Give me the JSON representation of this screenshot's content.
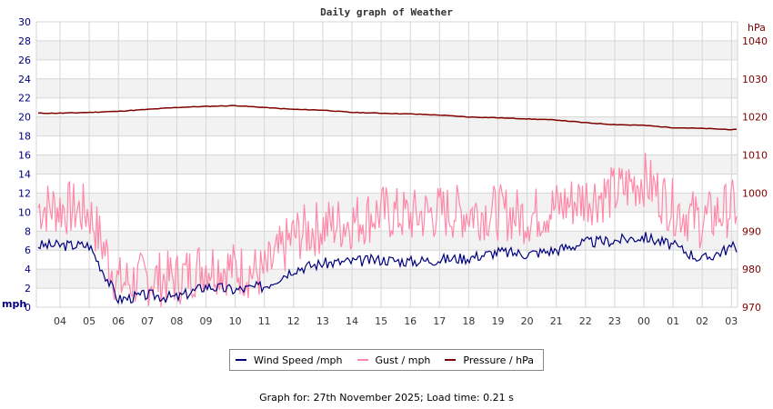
{
  "chart_data": {
    "type": "line",
    "title": "Daily graph of Weather",
    "xlabel": "",
    "ylabel": "mph",
    "ylabel_right": "hPa",
    "ylim": [
      0,
      30
    ],
    "ylim_right": [
      970,
      1040
    ],
    "grid": true,
    "legend_position": "bottom",
    "yticks_left": [
      "0",
      "2",
      "4",
      "6",
      "8",
      "10",
      "12",
      "14",
      "16",
      "18",
      "20",
      "22",
      "24",
      "26",
      "28",
      "30"
    ],
    "yticks_right": [
      "970",
      "980",
      "990",
      "1000",
      "1010",
      "1020",
      "1030",
      "1040"
    ],
    "x": [
      "04",
      "05",
      "06",
      "07",
      "08",
      "09",
      "10",
      "11",
      "12",
      "13",
      "14",
      "15",
      "16",
      "17",
      "18",
      "19",
      "20",
      "21",
      "22",
      "23",
      "00",
      "01",
      "02",
      "03"
    ],
    "series": [
      {
        "name": "Wind Speed /mph",
        "color": "#000080",
        "axis": "left",
        "values": [
          6.5,
          6.5,
          0.8,
          1.3,
          1.0,
          2.2,
          1.8,
          2.2,
          4.0,
          4.6,
          4.8,
          5.0,
          4.8,
          5.0,
          5.2,
          5.8,
          5.6,
          6.0,
          6.8,
          7.0,
          7.4,
          6.5,
          5.0,
          6.3
        ]
      },
      {
        "name": "Gust / mph",
        "color": "#ff88aa",
        "axis": "left",
        "values": [
          10.5,
          10.0,
          2.5,
          3.0,
          3.0,
          4.5,
          4.0,
          3.5,
          7.5,
          8.5,
          9.0,
          10.0,
          9.5,
          10.0,
          10.0,
          10.0,
          9.5,
          10.5,
          11.5,
          12.0,
          13.5,
          10.5,
          9.0,
          10.5
        ]
      },
      {
        "name": "Pressure / hPa",
        "color": "#800000",
        "axis": "right",
        "values": [
          1021,
          1021.2,
          1021.5,
          1022,
          1022.5,
          1022.8,
          1023,
          1022.5,
          1022,
          1021.8,
          1021.2,
          1021,
          1020.8,
          1020.5,
          1020,
          1019.8,
          1019.5,
          1019.2,
          1018.5,
          1018,
          1017.8,
          1017.2,
          1017,
          1016.7
        ]
      }
    ]
  },
  "legend": [
    {
      "label": "Wind Speed /mph",
      "color": "#000080"
    },
    {
      "label": "Gust / mph",
      "color": "#ff88aa"
    },
    {
      "label": "Pressure / hPa",
      "color": "#800000"
    }
  ],
  "footer": {
    "text": "Graph for: 27th November 2025; Load time: 0.21 s"
  }
}
